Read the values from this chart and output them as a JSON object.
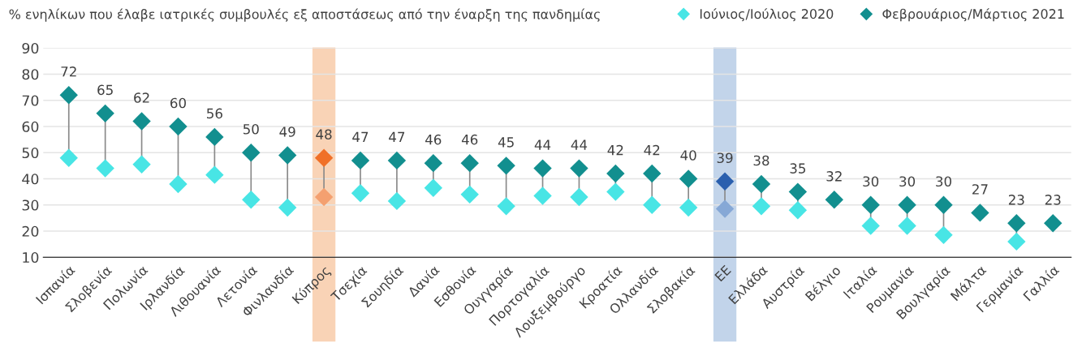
{
  "chart_data": {
    "type": "scatter",
    "title": "% ενηλίκων που έλαβε ιατρικές συμβουλές εξ αποστάσεως από την έναρξη της πανδημίας",
    "categories": [
      "Ισπανία",
      "Σλοβενία",
      "Πολωνία",
      "Ιρλανδία",
      "Λιθουανία",
      "Λετονία",
      "Φινλανδία",
      "Κύπρος",
      "Τσεχία",
      "Σουηδία",
      "Δανία",
      "Εσθονία",
      "Ουγγαρία",
      "Πορτογαλία",
      "Λουξεμβούργο",
      "Κροατία",
      "Ολλανδία",
      "Σλοβακία",
      "ΕΕ",
      "Ελλάδα",
      "Αυστρία",
      "Βέλγιο",
      "Ιταλία",
      "Ρουμανία",
      "Βουλγαρία",
      "Μάλτα",
      "Γερμανία",
      "Γαλλία"
    ],
    "series": [
      {
        "name": "Ιούνιος/Ιούλιος 2020",
        "color": "#48e5e5",
        "colors": [
          "#48e5e5",
          "#48e5e5",
          "#48e5e5",
          "#48e5e5",
          "#48e5e5",
          "#48e5e5",
          "#48e5e5",
          "#f4a070",
          "#48e5e5",
          "#48e5e5",
          "#48e5e5",
          "#48e5e5",
          "#48e5e5",
          "#48e5e5",
          "#48e5e5",
          "#48e5e5",
          "#48e5e5",
          "#48e5e5",
          "#86a8d6",
          "#48e5e5",
          "#48e5e5",
          "#48e5e5",
          "#48e5e5",
          "#48e5e5",
          "#48e5e5",
          "#48e5e5",
          "#48e5e5",
          "#48e5e5"
        ],
        "values": [
          48,
          44,
          45.5,
          38,
          41.5,
          32,
          29,
          33,
          34.5,
          31.5,
          36.5,
          34,
          29.5,
          33.5,
          33,
          35,
          30,
          29,
          28.5,
          29.5,
          28,
          null,
          22,
          22,
          18.5,
          null,
          16,
          null
        ]
      },
      {
        "name": "Φεβρουάριος/Μάρτιος 2021",
        "color": "#128f8f",
        "colors": [
          "#128f8f",
          "#128f8f",
          "#128f8f",
          "#128f8f",
          "#128f8f",
          "#128f8f",
          "#128f8f",
          "#f07028",
          "#128f8f",
          "#128f8f",
          "#128f8f",
          "#128f8f",
          "#128f8f",
          "#128f8f",
          "#128f8f",
          "#128f8f",
          "#128f8f",
          "#128f8f",
          "#2a5fae",
          "#128f8f",
          "#128f8f",
          "#128f8f",
          "#128f8f",
          "#128f8f",
          "#128f8f",
          "#128f8f",
          "#128f8f",
          "#128f8f"
        ],
        "values": [
          72,
          65,
          62,
          60,
          56,
          50,
          49,
          48,
          47,
          47,
          46,
          46,
          45,
          44,
          44,
          42,
          42,
          40,
          39,
          38,
          35,
          32,
          30,
          30,
          30,
          27,
          23,
          23
        ],
        "value_labels": [
          "72",
          "65",
          "62",
          "60",
          "56",
          "50",
          "49",
          "48",
          "47",
          "47",
          "46",
          "46",
          "45",
          "44",
          "44",
          "42",
          "42",
          "40",
          "39",
          "38",
          "35",
          "32",
          "30",
          "30",
          "30",
          "27",
          "23",
          "23"
        ]
      }
    ],
    "bands": [
      {
        "axis": "x",
        "from": "Κύπρος",
        "to": "Κύπρος",
        "color": "#f9d3b6"
      },
      {
        "axis": "x",
        "from": "ΕΕ",
        "to": "ΕΕ",
        "color": "#c2d4ea"
      }
    ],
    "ylim": [
      10,
      90
    ],
    "yticks": [
      10,
      20,
      30,
      40,
      50,
      60,
      70,
      80,
      90
    ],
    "grid": "y",
    "legend": "top right",
    "marker": "diamond"
  }
}
